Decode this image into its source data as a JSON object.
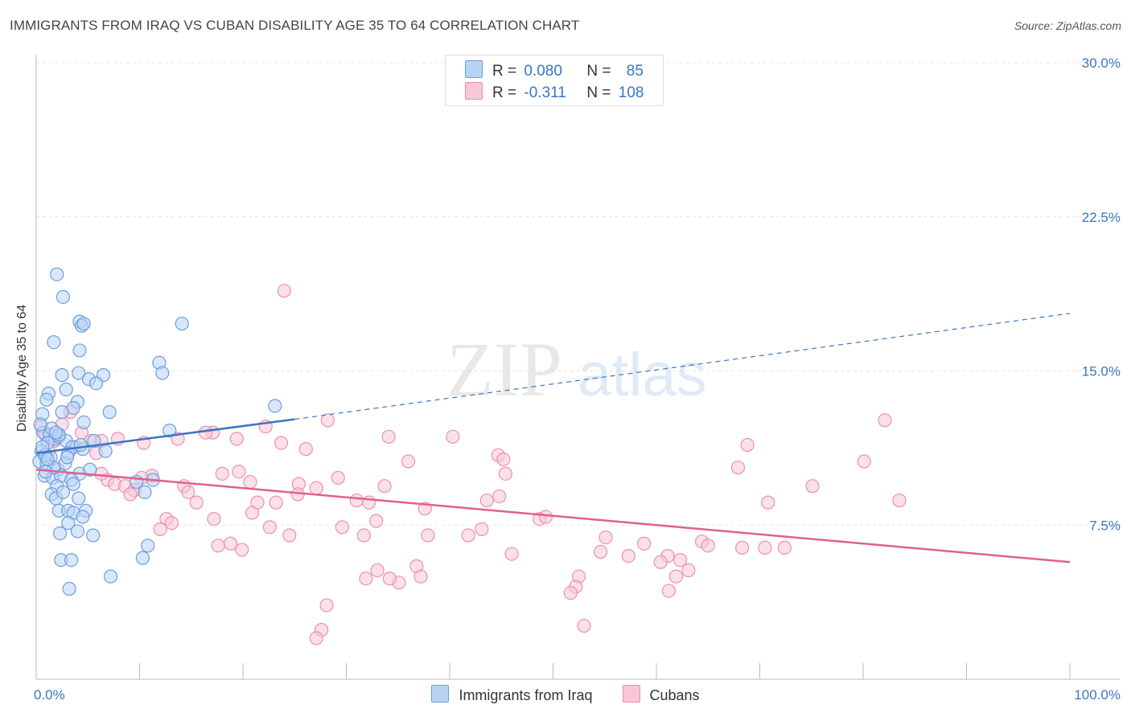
{
  "header": {
    "title": "IMMIGRANTS FROM IRAQ VS CUBAN DISABILITY AGE 35 TO 64 CORRELATION CHART",
    "source": "Source: ZipAtlas.com"
  },
  "watermark": {
    "zip": "ZIP",
    "atlas": "atlas"
  },
  "legend": {
    "series1": {
      "r_label": "R =",
      "r_value": "0.080",
      "n_label": "N =",
      "n_value": "85"
    },
    "series2": {
      "r_label": "R =",
      "r_value": "-0.311",
      "n_label": "N =",
      "n_value": "108"
    }
  },
  "colors": {
    "blue_fill": "#b9d3f5",
    "blue_stroke": "#6a9de0",
    "blue_line": "#3a76c4",
    "pink_fill": "#f7c7d7",
    "pink_stroke": "#ec90ae",
    "pink_line": "#e06090",
    "grid": "#e4e4e4",
    "tick_text": "#3a76c4"
  },
  "chart_data": {
    "type": "scatter",
    "title": "IMMIGRANTS FROM IRAQ VS CUBAN DISABILITY AGE 35 TO 64 CORRELATION CHART",
    "xlabel": "",
    "ylabel": "Disability Age 35 to 64",
    "xlim": [
      0,
      100
    ],
    "ylim": [
      0,
      30
    ],
    "x_tick_labels": [
      "0.0%",
      "100.0%"
    ],
    "y_ticks": [
      7.5,
      15.0,
      22.5,
      30.0
    ],
    "y_tick_labels": [
      "7.5%",
      "15.0%",
      "22.5%",
      "30.0%"
    ],
    "grid": true,
    "series": [
      {
        "name": "Immigrants from Iraq",
        "r": 0.08,
        "n": 85,
        "trend": {
          "x0": 0,
          "y0": 11.0,
          "x1": 25,
          "y1": 12.65,
          "dashed_to_x": 100,
          "dashed_to_y": 17.8
        },
        "points": [
          [
            2.0,
            19.7
          ],
          [
            2.6,
            18.6
          ],
          [
            4.2,
            17.4
          ],
          [
            4.4,
            17.2
          ],
          [
            4.6,
            17.3
          ],
          [
            14.1,
            17.3
          ],
          [
            1.7,
            16.4
          ],
          [
            4.2,
            16.0
          ],
          [
            11.9,
            15.4
          ],
          [
            12.2,
            14.9
          ],
          [
            2.5,
            14.8
          ],
          [
            4.1,
            14.9
          ],
          [
            5.1,
            14.6
          ],
          [
            6.5,
            14.8
          ],
          [
            5.8,
            14.4
          ],
          [
            1.2,
            13.9
          ],
          [
            2.9,
            14.1
          ],
          [
            1.0,
            13.6
          ],
          [
            4.0,
            13.5
          ],
          [
            3.6,
            13.2
          ],
          [
            7.1,
            13.0
          ],
          [
            0.6,
            12.9
          ],
          [
            2.5,
            13.0
          ],
          [
            23.1,
            13.3
          ],
          [
            4.6,
            12.5
          ],
          [
            0.7,
            12.0
          ],
          [
            1.3,
            11.9
          ],
          [
            1.8,
            11.7
          ],
          [
            2.2,
            11.8
          ],
          [
            2.9,
            11.6
          ],
          [
            1.1,
            11.5
          ],
          [
            3.5,
            11.3
          ],
          [
            0.5,
            11.1
          ],
          [
            0.8,
            10.9
          ],
          [
            1.4,
            10.8
          ],
          [
            3.1,
            11.0
          ],
          [
            4.5,
            11.2
          ],
          [
            6.7,
            11.1
          ],
          [
            0.3,
            10.6
          ],
          [
            1.0,
            10.5
          ],
          [
            2.1,
            10.2
          ],
          [
            4.2,
            10.0
          ],
          [
            5.2,
            10.2
          ],
          [
            0.8,
            9.9
          ],
          [
            1.6,
            9.8
          ],
          [
            2.4,
            9.9
          ],
          [
            3.4,
            9.7
          ],
          [
            2.0,
            9.4
          ],
          [
            3.6,
            9.5
          ],
          [
            9.7,
            9.6
          ],
          [
            11.3,
            9.7
          ],
          [
            1.5,
            9.0
          ],
          [
            1.9,
            8.8
          ],
          [
            4.1,
            8.8
          ],
          [
            10.5,
            9.1
          ],
          [
            2.2,
            8.2
          ],
          [
            3.1,
            8.2
          ],
          [
            3.6,
            8.1
          ],
          [
            4.8,
            8.2
          ],
          [
            4.5,
            7.9
          ],
          [
            3.1,
            7.6
          ],
          [
            4.0,
            7.2
          ],
          [
            2.3,
            7.1
          ],
          [
            5.5,
            7.0
          ],
          [
            10.8,
            6.5
          ],
          [
            2.4,
            5.8
          ],
          [
            3.4,
            5.8
          ],
          [
            10.3,
            5.9
          ],
          [
            7.2,
            5.0
          ],
          [
            3.2,
            4.4
          ],
          [
            12.9,
            12.1
          ],
          [
            0.4,
            12.4
          ],
          [
            1.5,
            12.2
          ],
          [
            2.2,
            11.9
          ],
          [
            2.8,
            10.5
          ],
          [
            0.9,
            10.9
          ],
          [
            5.6,
            11.6
          ],
          [
            1.7,
            10.3
          ],
          [
            3.0,
            10.8
          ],
          [
            1.1,
            10.7
          ],
          [
            0.6,
            11.3
          ],
          [
            1.9,
            12.0
          ],
          [
            4.3,
            11.4
          ],
          [
            2.6,
            9.1
          ],
          [
            0.9,
            10.1
          ]
        ]
      },
      {
        "name": "Cubans",
        "r": -0.311,
        "n": 108,
        "trend": {
          "x0": 0,
          "y0": 10.2,
          "x1": 100,
          "y1": 5.7
        },
        "points": [
          [
            24.0,
            18.9
          ],
          [
            0.5,
            12.3
          ],
          [
            2.5,
            12.4
          ],
          [
            3.3,
            13.0
          ],
          [
            4.4,
            12.0
          ],
          [
            0.9,
            11.9
          ],
          [
            1.8,
            11.6
          ],
          [
            3.8,
            11.3
          ],
          [
            5.3,
            11.6
          ],
          [
            6.3,
            11.6
          ],
          [
            7.9,
            11.7
          ],
          [
            10.4,
            11.5
          ],
          [
            1.2,
            11.1
          ],
          [
            5.8,
            11.0
          ],
          [
            13.7,
            11.7
          ],
          [
            17.1,
            12.0
          ],
          [
            19.4,
            11.7
          ],
          [
            22.2,
            12.3
          ],
          [
            23.7,
            11.5
          ],
          [
            26.1,
            11.2
          ],
          [
            28.2,
            12.6
          ],
          [
            34.1,
            11.8
          ],
          [
            36.0,
            10.6
          ],
          [
            44.7,
            10.9
          ],
          [
            45.2,
            10.7
          ],
          [
            68.8,
            11.4
          ],
          [
            82.1,
            12.6
          ],
          [
            80.1,
            10.6
          ],
          [
            67.9,
            10.3
          ],
          [
            45.4,
            10.0
          ],
          [
            11.2,
            9.9
          ],
          [
            18.0,
            10.0
          ],
          [
            19.6,
            10.1
          ],
          [
            6.9,
            9.7
          ],
          [
            7.6,
            9.5
          ],
          [
            8.6,
            9.4
          ],
          [
            9.5,
            9.2
          ],
          [
            10.2,
            9.8
          ],
          [
            14.3,
            9.4
          ],
          [
            14.7,
            9.1
          ],
          [
            15.5,
            8.6
          ],
          [
            20.7,
            9.6
          ],
          [
            25.4,
            9.5
          ],
          [
            25.3,
            9.0
          ],
          [
            27.1,
            9.3
          ],
          [
            29.2,
            9.8
          ],
          [
            33.7,
            9.4
          ],
          [
            31.0,
            8.7
          ],
          [
            32.2,
            8.6
          ],
          [
            37.6,
            8.3
          ],
          [
            43.6,
            8.7
          ],
          [
            44.8,
            8.9
          ],
          [
            75.1,
            9.4
          ],
          [
            83.5,
            8.7
          ],
          [
            70.8,
            8.6
          ],
          [
            20.9,
            8.1
          ],
          [
            21.4,
            8.6
          ],
          [
            12.6,
            7.8
          ],
          [
            12.0,
            7.3
          ],
          [
            13.1,
            7.6
          ],
          [
            17.2,
            7.8
          ],
          [
            22.6,
            7.4
          ],
          [
            23.2,
            8.6
          ],
          [
            29.6,
            7.4
          ],
          [
            31.7,
            7.0
          ],
          [
            32.9,
            7.7
          ],
          [
            37.9,
            7.0
          ],
          [
            41.8,
            7.0
          ],
          [
            43.1,
            7.3
          ],
          [
            48.7,
            7.8
          ],
          [
            49.3,
            7.9
          ],
          [
            24.5,
            7.0
          ],
          [
            17.6,
            6.5
          ],
          [
            18.8,
            6.6
          ],
          [
            19.9,
            6.3
          ],
          [
            36.8,
            5.5
          ],
          [
            46.0,
            6.1
          ],
          [
            55.1,
            6.9
          ],
          [
            54.6,
            6.2
          ],
          [
            58.8,
            6.6
          ],
          [
            64.4,
            6.7
          ],
          [
            65.0,
            6.5
          ],
          [
            68.3,
            6.4
          ],
          [
            70.5,
            6.4
          ],
          [
            72.4,
            6.4
          ],
          [
            61.1,
            6.0
          ],
          [
            57.3,
            6.0
          ],
          [
            52.5,
            5.0
          ],
          [
            62.3,
            5.8
          ],
          [
            60.4,
            5.7
          ],
          [
            63.1,
            5.3
          ],
          [
            37.2,
            5.0
          ],
          [
            35.1,
            4.7
          ],
          [
            33.0,
            5.3
          ],
          [
            34.2,
            4.9
          ],
          [
            31.9,
            4.9
          ],
          [
            52.2,
            4.5
          ],
          [
            51.7,
            4.2
          ],
          [
            61.2,
            4.3
          ],
          [
            61.9,
            5.0
          ],
          [
            28.1,
            3.6
          ],
          [
            27.6,
            2.4
          ],
          [
            27.1,
            2.0
          ],
          [
            53.0,
            2.6
          ],
          [
            9.1,
            9.0
          ],
          [
            16.4,
            12.0
          ],
          [
            40.3,
            11.8
          ],
          [
            6.3,
            10.0
          ]
        ]
      }
    ]
  },
  "bottom_legend": [
    "Immigrants from Iraq",
    "Cubans"
  ]
}
